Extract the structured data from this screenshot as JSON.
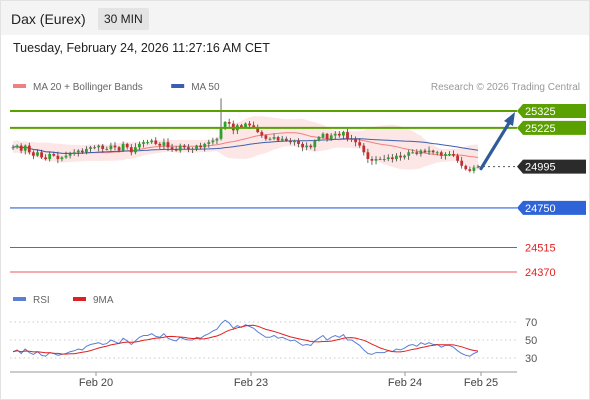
{
  "header": {
    "title": "Dax (Eurex)",
    "timeframe": "30 MIN"
  },
  "datetime": "Tuesday, February 24, 2026 11:27:16 AM CET",
  "colors": {
    "resistance": "#5aa000",
    "support": "#2f64d8",
    "minor": "#e02020",
    "price_tag": "#2b2b2b",
    "ma20": "#f08080",
    "ma50": "#3b5fb0",
    "bollinger_fill": "#fde3e3",
    "up": "#2da02d",
    "down": "#c03030",
    "arrow": "#2f5b9a",
    "rsi": "#5b7fd4",
    "rsi_ma": "#e02020"
  },
  "chart_data": [
    {
      "type": "candlestick",
      "legend": [
        {
          "name": "MA 20 + Bollinger Bands",
          "color": "#f08080"
        },
        {
          "name": "MA 50",
          "color": "#3b5fb0"
        }
      ],
      "credit": "Research © 2026 Trading Central",
      "x_ticks": [
        "Feb 20",
        "Feb 23",
        "Feb 24",
        "Feb 25"
      ],
      "ylim": [
        24300,
        25400
      ],
      "levels": [
        {
          "value": 25325,
          "label": "25325",
          "kind": "resistance"
        },
        {
          "value": 25225,
          "label": "25225",
          "kind": "resistance"
        },
        {
          "value": 24995,
          "label": "24995",
          "kind": "price"
        },
        {
          "value": 24750,
          "label": "24750",
          "kind": "support"
        },
        {
          "value": 24515,
          "label": "24515",
          "kind": "minor"
        },
        {
          "value": 24370,
          "label": "24370",
          "kind": "minor"
        }
      ],
      "close_series": [
        25110,
        25120,
        25090,
        25120,
        25080,
        25060,
        25080,
        25050,
        25040,
        25070,
        25060,
        25040,
        25050,
        25060,
        25070,
        25080,
        25090,
        25080,
        25100,
        25110,
        25110,
        25120,
        25100,
        25100,
        25120,
        25110,
        25090,
        25130,
        25110,
        25080,
        25110,
        25130,
        25140,
        25140,
        25150,
        25130,
        25120,
        25140,
        25110,
        25100,
        25090,
        25120,
        25110,
        25100,
        25100,
        25120,
        25110,
        25130,
        25140,
        25150,
        25160,
        25220,
        25260,
        25250,
        25210,
        25240,
        25230,
        25250,
        25240,
        25230,
        25200,
        25180,
        25160,
        25160,
        25170,
        25150,
        25160,
        25150,
        25140,
        25150,
        25130,
        25110,
        25120,
        25110,
        25150,
        25170,
        25190,
        25160,
        25180,
        25190,
        25180,
        25200,
        25160,
        25160,
        25140,
        25120,
        25080,
        25040,
        25030,
        25040,
        25040,
        25040,
        25050,
        25040,
        25060,
        25050,
        25060,
        25080,
        25080,
        25070,
        25090,
        25080,
        25090,
        25080,
        25080,
        25060,
        25070,
        25070,
        25060,
        25030,
        25000,
        24980,
        24970,
        24990,
        24995
      ],
      "forecast": {
        "from": 24995,
        "to": 25325
      }
    },
    {
      "type": "line",
      "legend": [
        {
          "name": "RSI",
          "color": "#5b7fd4"
        },
        {
          "name": "9MA",
          "color": "#e02020"
        }
      ],
      "ylim": [
        20,
        80
      ],
      "y_ticks": [
        30,
        50,
        70
      ],
      "rsi": [
        37,
        39,
        35,
        40,
        36,
        34,
        37,
        33,
        32,
        36,
        35,
        33,
        34,
        35,
        37,
        38,
        40,
        39,
        43,
        45,
        46,
        47,
        45,
        46,
        50,
        48,
        46,
        52,
        49,
        45,
        49,
        53,
        55,
        55,
        57,
        54,
        53,
        57,
        52,
        50,
        49,
        53,
        51,
        50,
        50,
        53,
        52,
        55,
        57,
        60,
        62,
        68,
        72,
        69,
        63,
        66,
        64,
        67,
        65,
        63,
        59,
        56,
        53,
        53,
        55,
        52,
        53,
        51,
        49,
        50,
        47,
        44,
        45,
        44,
        49,
        52,
        55,
        50,
        53,
        55,
        53,
        56,
        50,
        50,
        47,
        44,
        39,
        35,
        34,
        36,
        36,
        36,
        38,
        37,
        40,
        39,
        41,
        44,
        45,
        43,
        47,
        45,
        47,
        45,
        45,
        42,
        44,
        44,
        42,
        38,
        35,
        33,
        32,
        35,
        37
      ]
    }
  ]
}
